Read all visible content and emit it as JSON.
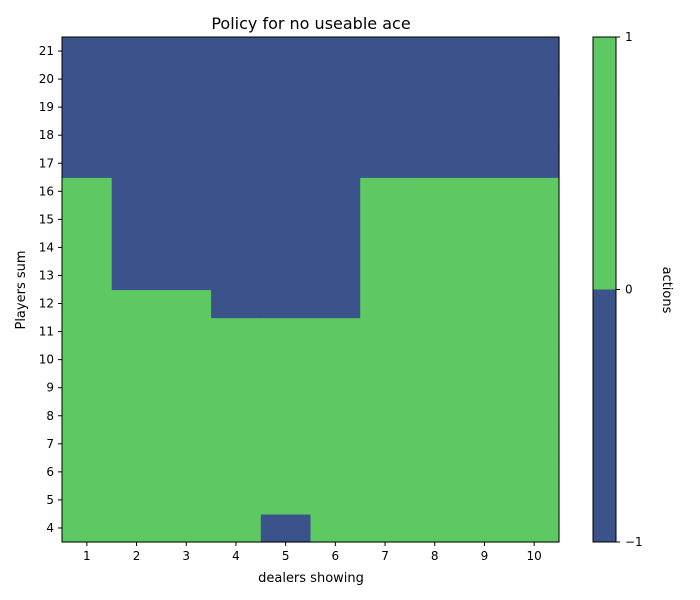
{
  "chart_data": {
    "type": "heatmap",
    "title": "Policy for no useable ace",
    "xlabel": "dealers showing",
    "ylabel": "Players sum",
    "x": [
      1,
      2,
      3,
      4,
      5,
      6,
      7,
      8,
      9,
      10
    ],
    "y": [
      4,
      5,
      6,
      7,
      8,
      9,
      10,
      11,
      12,
      13,
      14,
      15,
      16,
      17,
      18,
      19,
      20,
      21
    ],
    "xlim": [
      0.5,
      10.5
    ],
    "ylim": [
      3.5,
      21.5
    ],
    "values": [
      [
        1,
        1,
        1,
        1,
        -1,
        1,
        1,
        1,
        1,
        1
      ],
      [
        1,
        1,
        1,
        1,
        1,
        1,
        1,
        1,
        1,
        1
      ],
      [
        1,
        1,
        1,
        1,
        1,
        1,
        1,
        1,
        1,
        1
      ],
      [
        1,
        1,
        1,
        1,
        1,
        1,
        1,
        1,
        1,
        1
      ],
      [
        1,
        1,
        1,
        1,
        1,
        1,
        1,
        1,
        1,
        1
      ],
      [
        1,
        1,
        1,
        1,
        1,
        1,
        1,
        1,
        1,
        1
      ],
      [
        1,
        1,
        1,
        1,
        1,
        1,
        1,
        1,
        1,
        1
      ],
      [
        1,
        1,
        1,
        1,
        1,
        1,
        1,
        1,
        1,
        1
      ],
      [
        1,
        1,
        1,
        -1,
        -1,
        -1,
        1,
        1,
        1,
        1
      ],
      [
        1,
        -1,
        -1,
        -1,
        -1,
        -1,
        1,
        1,
        1,
        1
      ],
      [
        1,
        -1,
        -1,
        -1,
        -1,
        -1,
        1,
        1,
        1,
        1
      ],
      [
        1,
        -1,
        -1,
        -1,
        -1,
        -1,
        1,
        1,
        1,
        1
      ],
      [
        1,
        -1,
        -1,
        -1,
        -1,
        -1,
        1,
        1,
        1,
        1
      ],
      [
        -1,
        -1,
        -1,
        -1,
        -1,
        -1,
        -1,
        -1,
        -1,
        -1
      ],
      [
        -1,
        -1,
        -1,
        -1,
        -1,
        -1,
        -1,
        -1,
        -1,
        -1
      ],
      [
        -1,
        -1,
        -1,
        -1,
        -1,
        -1,
        -1,
        -1,
        -1,
        -1
      ],
      [
        -1,
        -1,
        -1,
        -1,
        -1,
        -1,
        -1,
        -1,
        -1,
        -1
      ],
      [
        -1,
        -1,
        -1,
        -1,
        -1,
        -1,
        -1,
        -1,
        -1,
        -1
      ]
    ],
    "colorbar": {
      "label": "actions",
      "ticks": [
        -1,
        0,
        1
      ],
      "tick_labels": [
        "−1",
        "0",
        "1"
      ],
      "levels": [
        {
          "range": [
            -1,
            0
          ],
          "color": "#3b528b"
        },
        {
          "range": [
            0,
            1
          ],
          "color": "#5ec962"
        }
      ]
    },
    "colors": {
      "hit": "#5ec962",
      "stick": "#3b528b"
    }
  }
}
